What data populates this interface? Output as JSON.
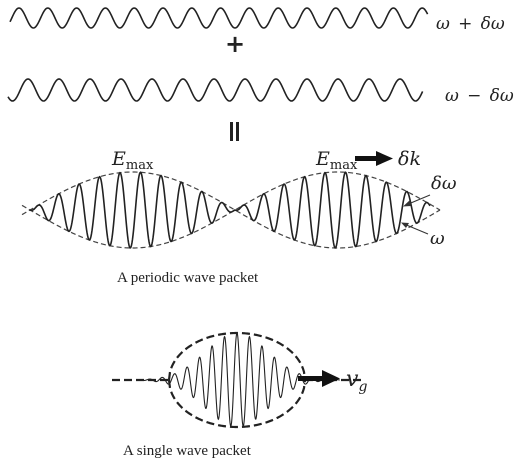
{
  "top_wave": {
    "label_freq": "ω",
    "label_op": "+",
    "label_delta": "δω"
  },
  "plus_sign": "+",
  "second_wave": {
    "label_freq": "ω",
    "label_op": "−",
    "label_delta": "δω"
  },
  "equals_sign": "=",
  "periodic_packet": {
    "emax_letter": "E",
    "emax_sub": "max",
    "arrow_label_delta": "δk",
    "envelope_label": "δω",
    "carrier_label": "ω",
    "caption": "A periodic wave packet"
  },
  "single_packet": {
    "velocity_letter": "v",
    "velocity_sub": "g",
    "caption": "A single wave packet"
  }
}
